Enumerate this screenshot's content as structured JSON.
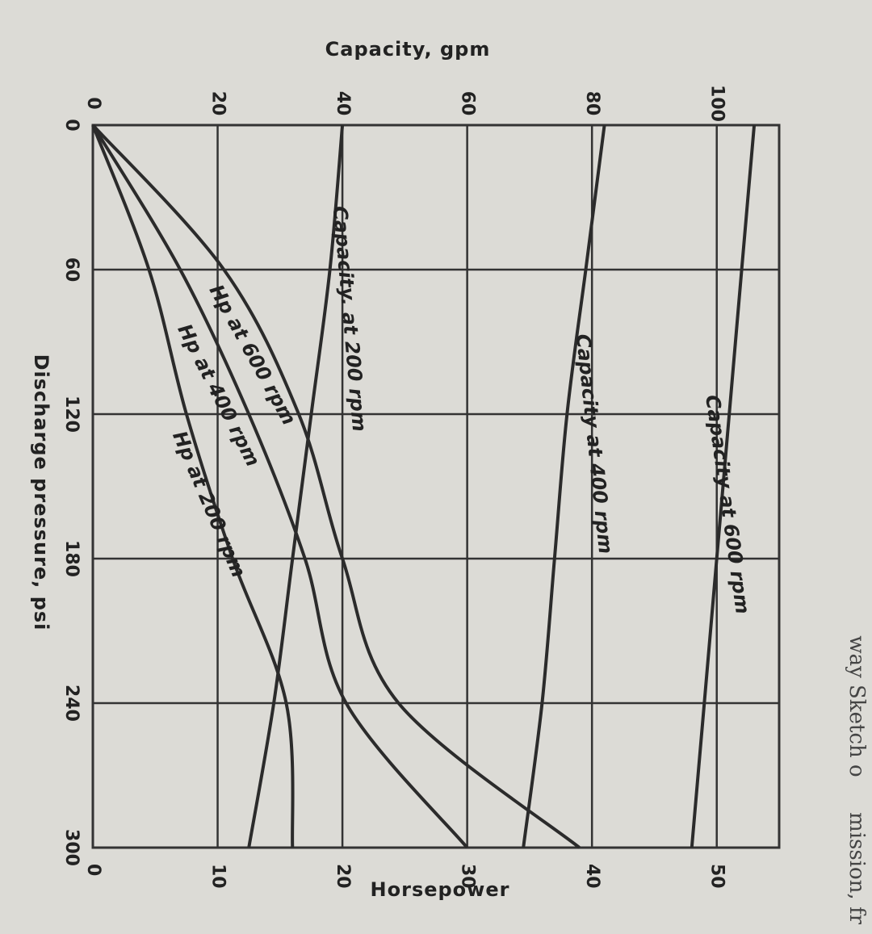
{
  "chart_data": {
    "type": "line",
    "x_axis": {
      "label": "Discharge pressure, psi",
      "range": [
        0,
        300
      ],
      "ticks": [
        "0",
        "60",
        "120",
        "180",
        "240",
        "300"
      ],
      "tick_values": [
        0,
        60,
        120,
        180,
        240,
        300
      ]
    },
    "left_axis": {
      "label": "Capacity, gpm",
      "range": [
        0,
        110
      ],
      "ticks": [
        "0",
        "20",
        "40",
        "60",
        "80",
        "100"
      ],
      "tick_values": [
        0,
        20,
        40,
        60,
        80,
        100
      ]
    },
    "right_axis": {
      "label": "Horsepower",
      "range": [
        0,
        55
      ],
      "ticks": [
        "0",
        "10",
        "20",
        "30",
        "40",
        "50"
      ],
      "tick_values": [
        0,
        10,
        20,
        30,
        40,
        50
      ]
    },
    "grid": true,
    "series": [
      {
        "name": "Capacity at 600 rpm",
        "axis": "left",
        "label": "Capacity at 600 rpm",
        "x": [
          0,
          60,
          120,
          180,
          240,
          300
        ],
        "y": [
          106,
          104,
          102,
          100,
          98,
          96
        ]
      },
      {
        "name": "Capacity at 400 rpm",
        "axis": "left",
        "label": "Capacity at 400 rpm",
        "x": [
          0,
          60,
          120,
          180,
          240,
          300
        ],
        "y": [
          82,
          79,
          76,
          74,
          72,
          69
        ]
      },
      {
        "name": "Capacity at 200 rpm",
        "axis": "left",
        "label": "Capacity. at 200 rpm",
        "x": [
          0,
          60,
          120,
          180,
          240,
          300
        ],
        "y": [
          40,
          38,
          35,
          32,
          29,
          25
        ]
      },
      {
        "name": "Hp at 600 rpm",
        "axis": "right",
        "label": "Hp at 600 rpm",
        "x": [
          0,
          60,
          120,
          180,
          240,
          300
        ],
        "y": [
          0,
          10.5,
          16.5,
          20,
          24.5,
          39
        ]
      },
      {
        "name": "Hp at 400 rpm",
        "axis": "right",
        "label": "Hp at 400 rpm",
        "x": [
          0,
          60,
          120,
          180,
          240,
          300
        ],
        "y": [
          0,
          7,
          12.5,
          17,
          20.3,
          30
        ]
      },
      {
        "name": "Hp at 200 rpm",
        "axis": "right",
        "label": "Hp at 200 rpm",
        "x": [
          0,
          60,
          120,
          180,
          240,
          300
        ],
        "y": [
          0,
          4.5,
          7.5,
          11.2,
          15.5,
          16
        ]
      }
    ]
  },
  "edge_text": {
    "top_right": "way Sketch o",
    "bottom_right": "mission, fr"
  }
}
